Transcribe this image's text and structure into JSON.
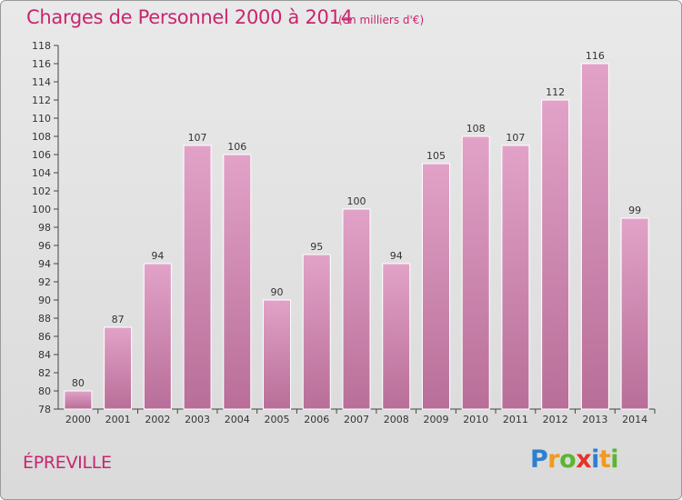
{
  "chart_data": {
    "type": "bar",
    "title": "Charges de Personnel 2000 à 2014",
    "unit": "(en milliers d'€)",
    "categories": [
      "2000",
      "2001",
      "2002",
      "2003",
      "2004",
      "2005",
      "2006",
      "2007",
      "2008",
      "2009",
      "2010",
      "2011",
      "2012",
      "2013",
      "2014"
    ],
    "values": [
      80,
      87,
      94,
      107,
      106,
      90,
      95,
      100,
      94,
      105,
      108,
      107,
      112,
      116,
      99
    ],
    "ylim": [
      78,
      118
    ],
    "yticks": [
      78,
      80,
      82,
      84,
      86,
      88,
      90,
      92,
      94,
      96,
      98,
      100,
      102,
      104,
      106,
      108,
      110,
      112,
      114,
      116,
      118
    ],
    "grid": false,
    "bar_color": "#e2a2c8",
    "bar_color_dark": "#b86e98"
  },
  "commune": "ÉPREVILLE",
  "logo": {
    "letters": [
      "P",
      "r",
      "o",
      "x",
      "i",
      "t",
      "i"
    ],
    "colors": [
      "#2f7fd0",
      "#f19a1d",
      "#5cb531",
      "#e5322b",
      "#2f7fd0",
      "#f19a1d",
      "#5cb531"
    ]
  },
  "colors": {
    "title": "#c8256f",
    "axis": "#444444"
  }
}
